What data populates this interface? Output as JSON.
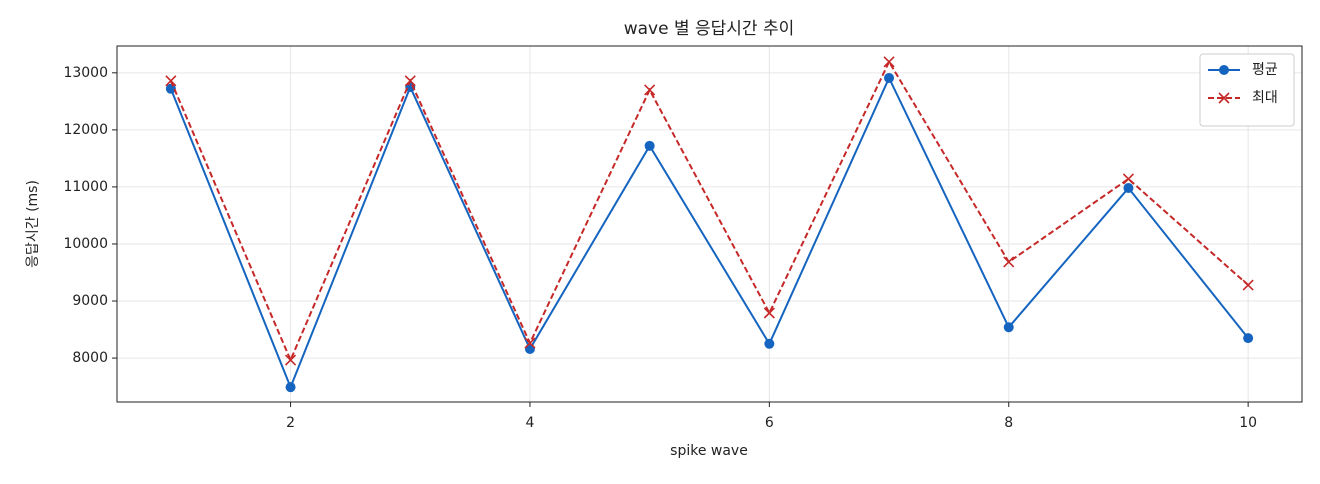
{
  "chart_data": {
    "type": "line",
    "title": "wave 별 응답시간 추이",
    "xlabel": "spike wave",
    "ylabel": "응답시간 (ms)",
    "x": [
      1,
      2,
      3,
      4,
      5,
      6,
      7,
      8,
      9,
      10
    ],
    "series": [
      {
        "name": "평균",
        "color": "#1565c0",
        "marker": "o",
        "linestyle": "solid",
        "values": [
          12720,
          7490,
          12750,
          8160,
          11720,
          8250,
          12910,
          8540,
          10980,
          8350
        ]
      },
      {
        "name": "최대",
        "color": "#c62828",
        "marker": "x",
        "linestyle": "dashed",
        "values": [
          12860,
          7965,
          12860,
          8263,
          12700,
          8790,
          13193,
          9684,
          11140,
          9280
        ]
      }
    ],
    "xlim": [
      0.55,
      10.45
    ],
    "ylim": [
      7230,
      13470
    ],
    "xticks": [
      2,
      4,
      6,
      8,
      10
    ],
    "yticks": [
      8000,
      9000,
      10000,
      11000,
      12000,
      13000
    ],
    "grid": true,
    "legend": "upper right"
  }
}
